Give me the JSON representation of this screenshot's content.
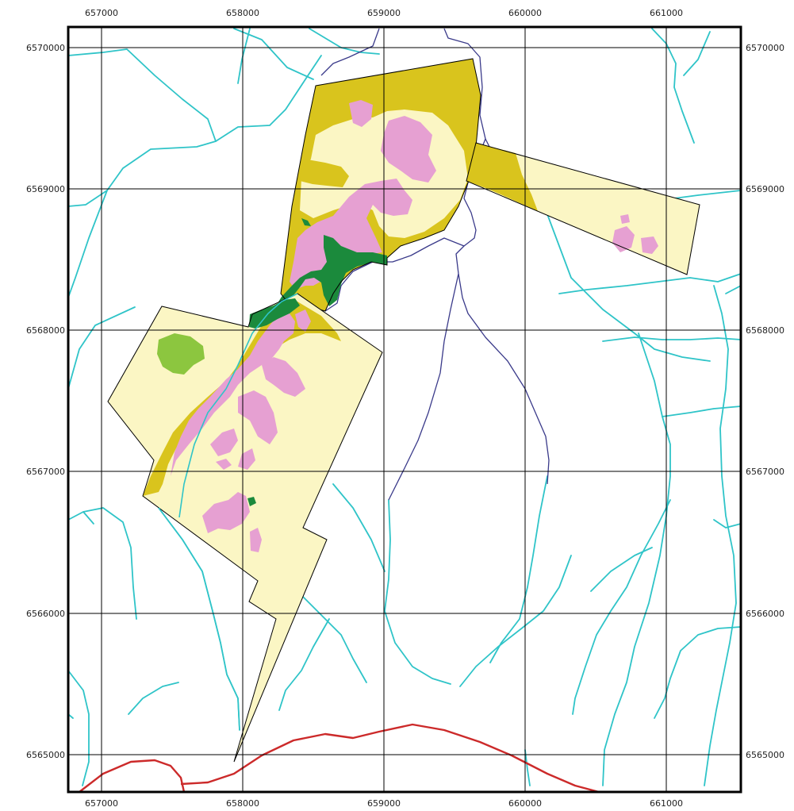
{
  "map": {
    "x_ticks": [
      "657000",
      "658000",
      "659000",
      "660000",
      "661000"
    ],
    "y_ticks": [
      "6570000",
      "6569000",
      "6568000",
      "6567000",
      "6566000",
      "6565000"
    ]
  },
  "colors": {
    "frame": "#000000",
    "grid": "#000000",
    "boundary": "#000000",
    "stream": "#2fc4c8",
    "river": "#3a3a8a",
    "road": "#cc2a2a",
    "zone_pale_yellow": "#fbf6c4",
    "zone_olive": "#d9c41d",
    "zone_pink": "#e6a0d2",
    "zone_dark_green": "#1b8a3c",
    "zone_light_green": "#8cc63f"
  }
}
